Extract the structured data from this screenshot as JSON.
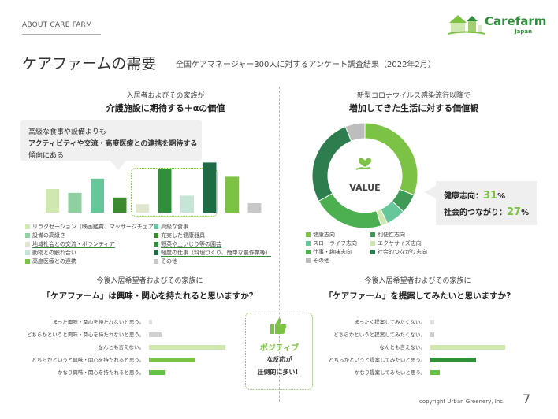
{
  "header": {
    "section": "ABOUT CARE FARM",
    "title": "ケアファームの需要",
    "subtitle": "全国ケアマネージャー300人に対するアンケート調査結果（2022年2月）"
  },
  "logo": {
    "name": "Carefarm",
    "sub": "Japan"
  },
  "left_panel": {
    "heading1": "入居者およびその家族が",
    "heading2": "介護施設に期待する＋αの価値",
    "callout": [
      "高級な食事や設備よりも",
      "アクティビティや交流・高度医療との連携を期待する",
      "傾向にある"
    ]
  },
  "right_panel": {
    "heading1": "新型コロナウイルス感染流行以降で",
    "heading2": "増加してきた生活に対する価値観",
    "center_label": "VALUE",
    "stats": [
      {
        "label": "健康志向：",
        "value": "31",
        "unit": "%"
      },
      {
        "label": "社会的つながり：",
        "value": "27",
        "unit": "%"
      }
    ]
  },
  "bottom_left": {
    "q1": "今後入居希望者およびその家族に",
    "q2": "「ケアファーム」は興味・関心を持たれると思いますか？"
  },
  "bottom_right": {
    "q1": "今後入居希望者およびその家族に",
    "q2": "「ケアファーム」を提案してみたいと思いますか?"
  },
  "positive_box": {
    "title": "ポジティブ",
    "line2": "な反応が",
    "line3": "圧倒的に多い！"
  },
  "footer": {
    "copyright": "copyright Urban Greenery, Inc.",
    "page": "7"
  },
  "chart_data": [
    {
      "type": "bar",
      "categories": [
        "リラクゼーション（映画鑑賞、マッサージチェア）",
        "設備の高級さ",
        "地域社会との交流・ボランティア",
        "動物との触れ合い",
        "高度医療との連携",
        "高級な食事",
        "充実した健康器具",
        "野菜や土いじり等の園芸",
        "軽度の仕事（料理づくり、簡単な農作業等）",
        "その他"
      ],
      "bar_order": [
        "リラクゼーション（映画鑑賞、マッサージチェア）",
        "設備の高級さ",
        "高級な食事",
        "充実した健康器具",
        "地域社会との交流・ボランティア",
        "野菜や土いじり等の園芸",
        "動物との触れ合い",
        "軽度の仕事（料理づくり、簡単な農作業等）",
        "高度医療との連携",
        "その他"
      ],
      "values": [
        25,
        21,
        9,
        18,
        38,
        36,
        16,
        46,
        53,
        10
      ],
      "colors": [
        "#cfe8b0",
        "#8fd0a0",
        "#dfe7ce",
        "#c5e5d6",
        "#7cc244",
        "#66c89a",
        "#3c8a2e",
        "#2f8f3a",
        "#1e6b45",
        "#c8c8c8"
      ],
      "ylim": [
        0,
        60
      ]
    },
    {
      "type": "pie",
      "labels": [
        "健康志向",
        "利便性志向",
        "スローライフ志向",
        "エクササイズ志向",
        "仕事・趣味志向",
        "社会的つながり志向",
        "その他"
      ],
      "values": [
        31,
        6,
        6,
        2,
        22,
        27,
        6
      ],
      "colors": [
        "#7cc244",
        "#3f9a55",
        "#66c89a",
        "#cfe8b0",
        "#4caf50",
        "#2e7d4f",
        "#bdbdbd"
      ],
      "legend": "bottom"
    },
    {
      "type": "bar",
      "orientation": "horizontal",
      "categories": [
        "まった興味・関心を持たれないと思う。",
        "どちらかというと興味・関心を持たれないと思う。",
        "なんとも言えない。",
        "どちらかというと興味・関心を持たれると思う。",
        "かなり興味・関心を持たれると思う。"
      ],
      "values": [
        2,
        9,
        54,
        33,
        11
      ],
      "colors": [
        "#e0e0e0",
        "#d0d0d0",
        "#cfe8b0",
        "#7cc244",
        "#66c244"
      ]
    },
    {
      "type": "bar",
      "orientation": "horizontal",
      "categories": [
        "まったく提案してみたくない。",
        "どちらかというと提案してみたくない。",
        "なんとも言えない。",
        "どちらかというと提案してみたいと思う。",
        "かなり提案してみたいと思う。"
      ],
      "values": [
        3,
        3,
        54,
        33,
        7
      ],
      "colors": [
        "#e0e0e0",
        "#d0d0d0",
        "#cfe8b0",
        "#2f8f3a",
        "#66c244"
      ]
    }
  ]
}
